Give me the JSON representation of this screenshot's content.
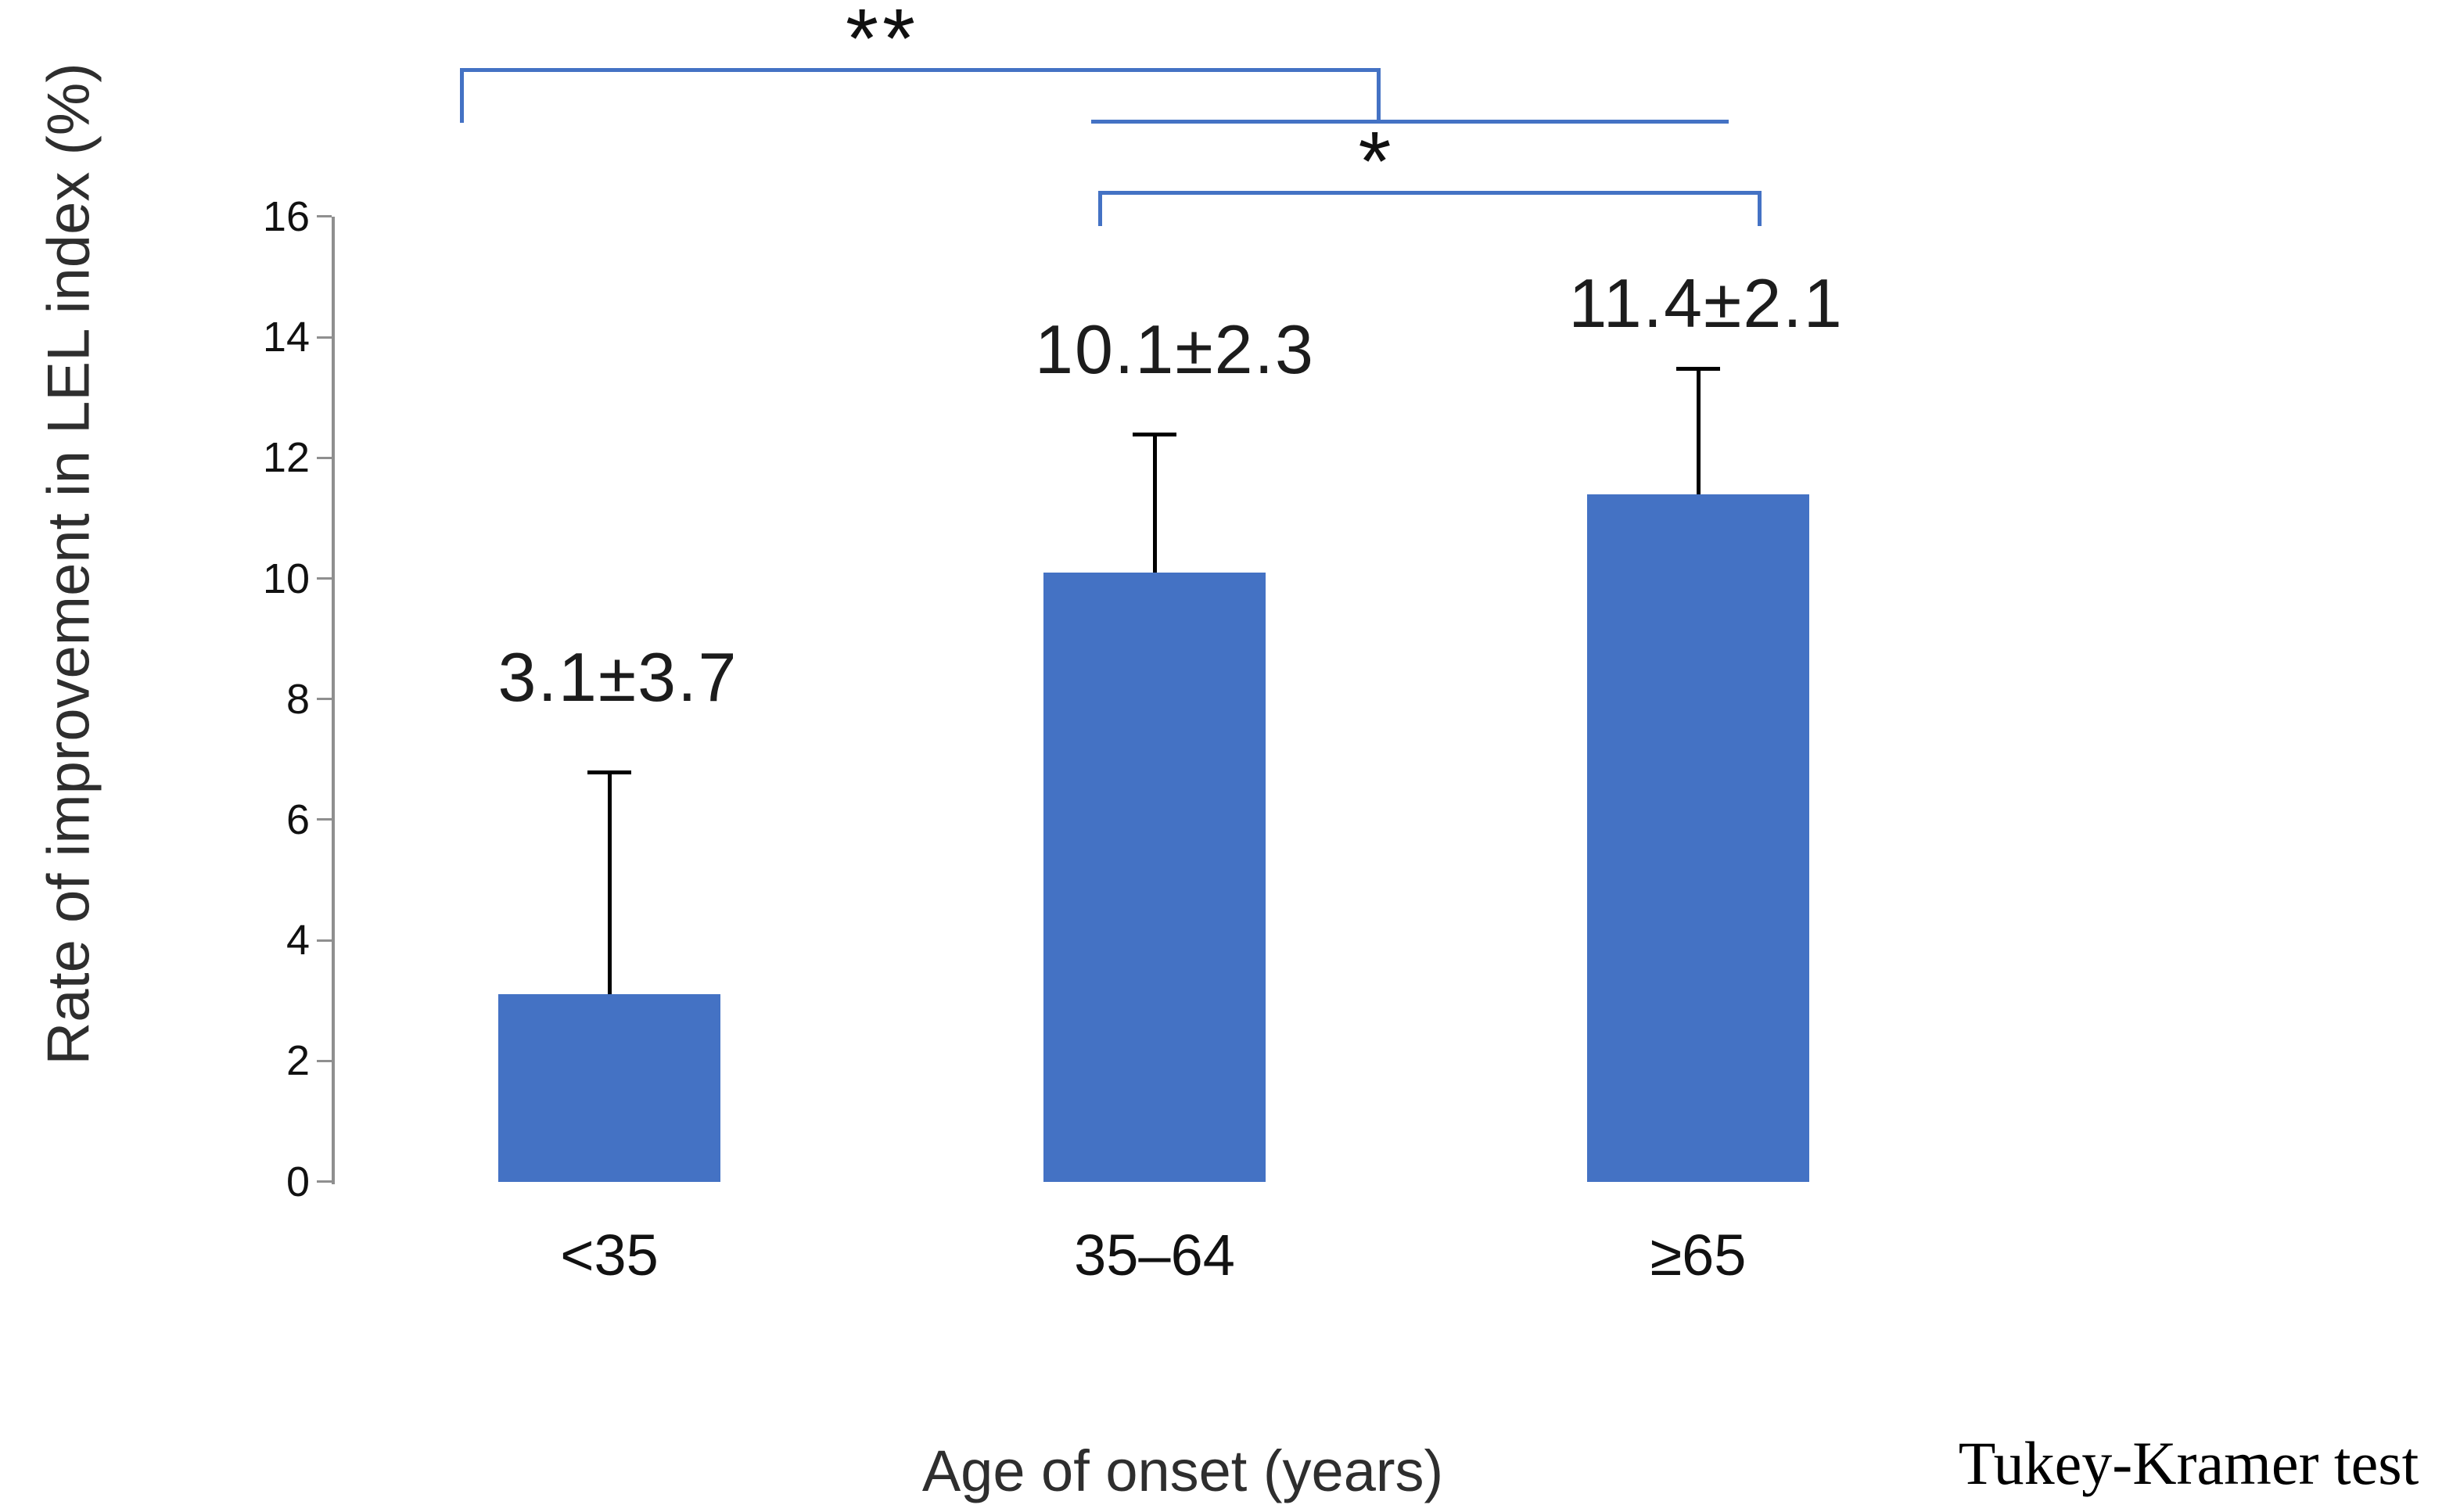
{
  "chart_data": {
    "type": "bar",
    "title": "",
    "categories": [
      "<35",
      "35–64",
      "≥65"
    ],
    "series": [
      {
        "name": "Rate of improvement in LEL index",
        "values": [
          3.1,
          10.1,
          11.4
        ],
        "error_plus": [
          3.7,
          2.3,
          2.1
        ]
      }
    ],
    "data_labels": [
      "3.1±3.7",
      "10.1±2.3",
      "11.4±2.1"
    ],
    "xlabel": "Age of onset (years)",
    "ylabel": "Rate of improvement in LEL index (%)",
    "ylim": [
      0,
      16
    ],
    "yticks": [
      0,
      2,
      4,
      6,
      8,
      10,
      12,
      14,
      16
    ],
    "grid": false,
    "legend": false,
    "bar_color": "#4472C4",
    "error_bar_color": "#000000",
    "bracket_color": "#4472C4",
    "axis_color": "#8F8F8F",
    "annotations": [
      {
        "label": "**",
        "comparison": "<35 vs 35–64 and ≥65 combined"
      },
      {
        "label": "*",
        "comparison": "35–64 vs ≥65"
      }
    ],
    "footnote": "Tukey-Kramer test"
  }
}
